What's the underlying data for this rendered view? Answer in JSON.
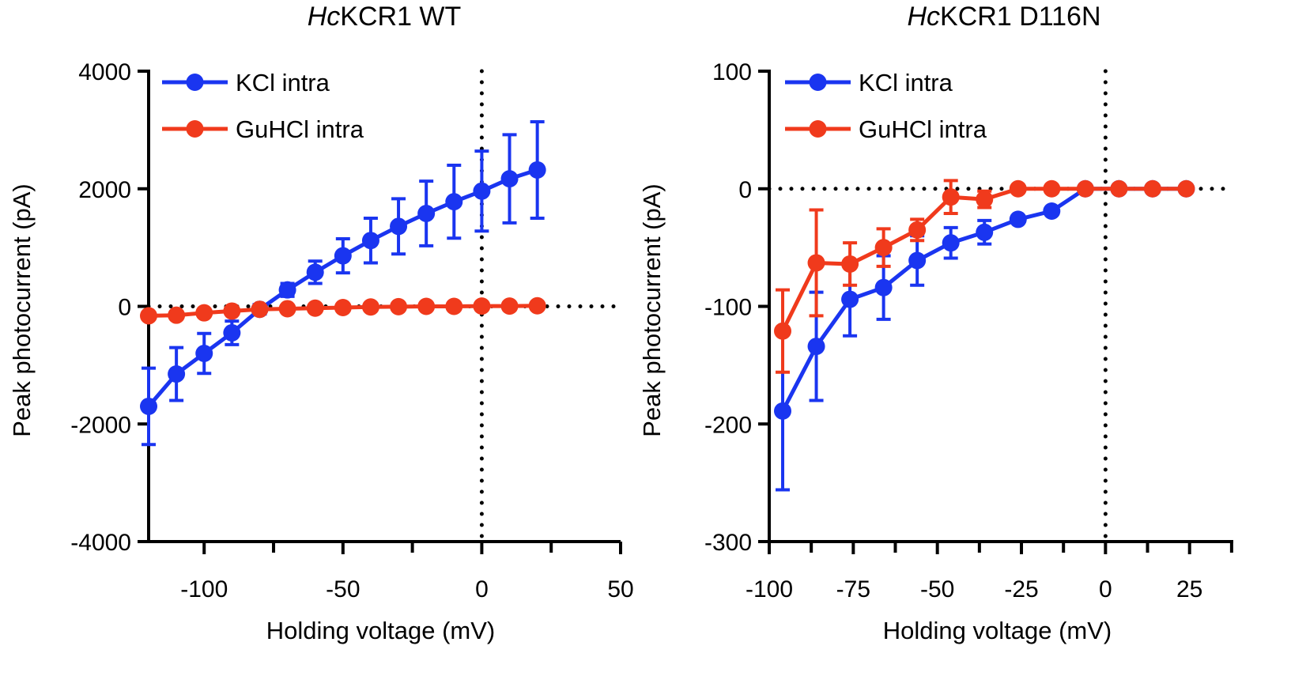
{
  "chart_data": [
    {
      "type": "line",
      "title_italic": "Hc",
      "title_rest": "KCR1 WT",
      "xlabel": "Holding voltage (mV)",
      "ylabel": "Peak photocurrent (pA)",
      "xlim": [
        -120,
        50
      ],
      "ylim": [
        -4000,
        4000
      ],
      "xticks": [
        -100,
        -50,
        0,
        50
      ],
      "yticks": [
        4000,
        2000,
        0,
        -2000,
        -4000
      ],
      "reference_lines": {
        "y": 0,
        "x": 0,
        "style": "dotted"
      },
      "legend_position": "top-left",
      "x": [
        -120,
        -110,
        -100,
        -90,
        -80,
        -70,
        -60,
        -50,
        -40,
        -30,
        -20,
        -10,
        0,
        10,
        20
      ],
      "series": [
        {
          "name": "KCl intra",
          "color": "#1a35f0",
          "values": [
            -1700,
            -1150,
            -800,
            -450,
            -50,
            280,
            580,
            860,
            1120,
            1360,
            1580,
            1780,
            1960,
            2170,
            2320
          ],
          "errors": [
            650,
            450,
            340,
            200,
            80,
            110,
            190,
            290,
            380,
            470,
            550,
            620,
            680,
            750,
            820
          ]
        },
        {
          "name": "GuHCl intra",
          "color": "#f03a1c",
          "values": [
            -160,
            -150,
            -110,
            -80,
            -50,
            -40,
            -30,
            -20,
            -10,
            -5,
            0,
            0,
            5,
            5,
            10
          ],
          "errors": [
            0,
            0,
            0,
            0,
            0,
            0,
            0,
            0,
            0,
            0,
            0,
            0,
            0,
            0,
            0
          ]
        }
      ]
    },
    {
      "type": "line",
      "title_italic": "Hc",
      "title_rest": "KCR1 D116N",
      "xlabel": "Holding voltage (mV)",
      "ylabel": "Peak photocurrent (pA)",
      "xlim": [
        -100,
        38
      ],
      "ylim": [
        -300,
        100
      ],
      "xticks": [
        -100,
        -75,
        -50,
        -25,
        0,
        25
      ],
      "yticks": [
        100,
        0,
        -100,
        -200,
        -300
      ],
      "reference_lines": {
        "y": 0,
        "x": 0,
        "style": "dotted"
      },
      "legend_position": "top-left",
      "x": [
        -96,
        -86,
        -76,
        -66,
        -56,
        -46,
        -36,
        -26,
        -16,
        -6,
        4,
        14,
        24
      ],
      "series": [
        {
          "name": "KCl intra",
          "color": "#1a35f0",
          "values": [
            -189,
            -134,
            -94,
            -84,
            -61,
            -46,
            -37,
            -26,
            -19,
            0,
            0,
            0,
            0
          ],
          "errors": [
            67,
            46,
            31,
            27,
            21,
            13,
            10,
            0,
            0,
            0,
            0,
            0,
            0
          ]
        },
        {
          "name": "GuHCl intra",
          "color": "#f03a1c",
          "values": [
            -121,
            -63,
            -64,
            -50,
            -35,
            -7,
            -9,
            0,
            0,
            0,
            0,
            0,
            0
          ],
          "errors": [
            35,
            45,
            18,
            16,
            9,
            14,
            7,
            0,
            0,
            0,
            0,
            0,
            0
          ]
        }
      ]
    }
  ]
}
